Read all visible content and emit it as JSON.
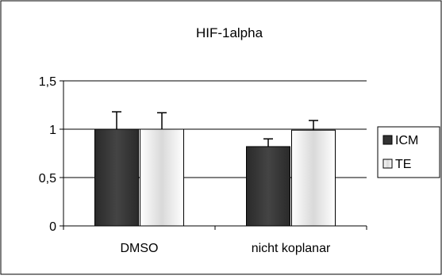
{
  "chart_data": {
    "type": "bar",
    "title": "HIF-1alpha",
    "categories": [
      "DMSO",
      "nicht koplanar"
    ],
    "series": [
      {
        "name": "ICM",
        "values": [
          1.0,
          0.82
        ],
        "error": [
          0.18,
          0.08
        ],
        "color": "#333333"
      },
      {
        "name": "TE",
        "values": [
          1.0,
          0.99
        ],
        "error": [
          0.17,
          0.1
        ],
        "color": "#e6e6e6"
      }
    ],
    "ylim": [
      0,
      1.5
    ],
    "yticks": [
      0,
      0.5,
      1,
      1.5
    ],
    "ytick_labels": [
      "0",
      "0,5",
      "1",
      "1,5"
    ],
    "grid": true,
    "legend_position": "right"
  }
}
